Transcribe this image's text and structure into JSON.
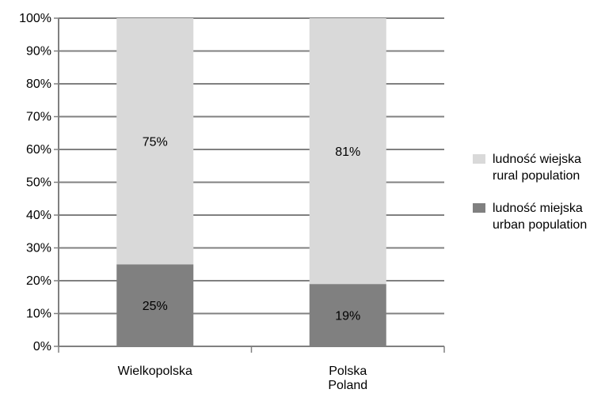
{
  "chart_data": {
    "type": "bar",
    "stacked": true,
    "categories": [
      [
        "Wielkopolska"
      ],
      [
        "Polska",
        "Poland"
      ]
    ],
    "series": [
      {
        "name": [
          "ludność miejska",
          "urban population"
        ],
        "values": [
          25,
          19
        ],
        "labels": [
          "25%",
          "19%"
        ],
        "color": "#808080"
      },
      {
        "name": [
          "ludność wiejska",
          "rural population"
        ],
        "values": [
          75,
          81
        ],
        "labels": [
          "75%",
          "81%"
        ],
        "color": "#d9d9d9"
      }
    ],
    "ylim": [
      0,
      100
    ],
    "yticks": [
      "0%",
      "10%",
      "20%",
      "30%",
      "40%",
      "50%",
      "60%",
      "70%",
      "80%",
      "90%",
      "100%"
    ],
    "grid": true,
    "legend_position": "right"
  },
  "colors": {
    "gridline": "#808080",
    "axis": "#808080"
  }
}
